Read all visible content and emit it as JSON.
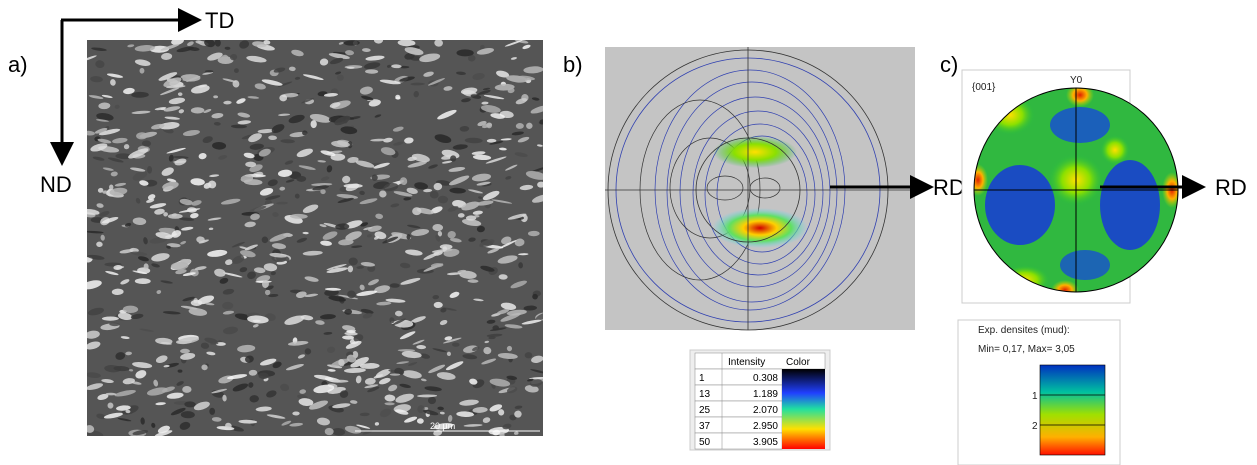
{
  "panel_a": {
    "label": "a)",
    "td_label": "TD",
    "nd_label": "ND",
    "scale_bar": "20 µm"
  },
  "panel_b": {
    "label": "b)",
    "rd_label": "RD",
    "table": {
      "header": [
        "Intensity",
        "Color"
      ],
      "rows": [
        [
          "1",
          "0.308"
        ],
        [
          "13",
          "1.189"
        ],
        [
          "25",
          "2.070"
        ],
        [
          "37",
          "2.950"
        ],
        [
          "50",
          "3.905"
        ]
      ]
    }
  },
  "panel_c": {
    "label": "c)",
    "plane": "{001}",
    "y_label": "Y0",
    "rd_label": "RD",
    "legend": {
      "title": "Exp. densites (mud):",
      "range": "Min= 0,17, Max= 3,05",
      "ticks": [
        "1",
        "2"
      ]
    }
  }
}
